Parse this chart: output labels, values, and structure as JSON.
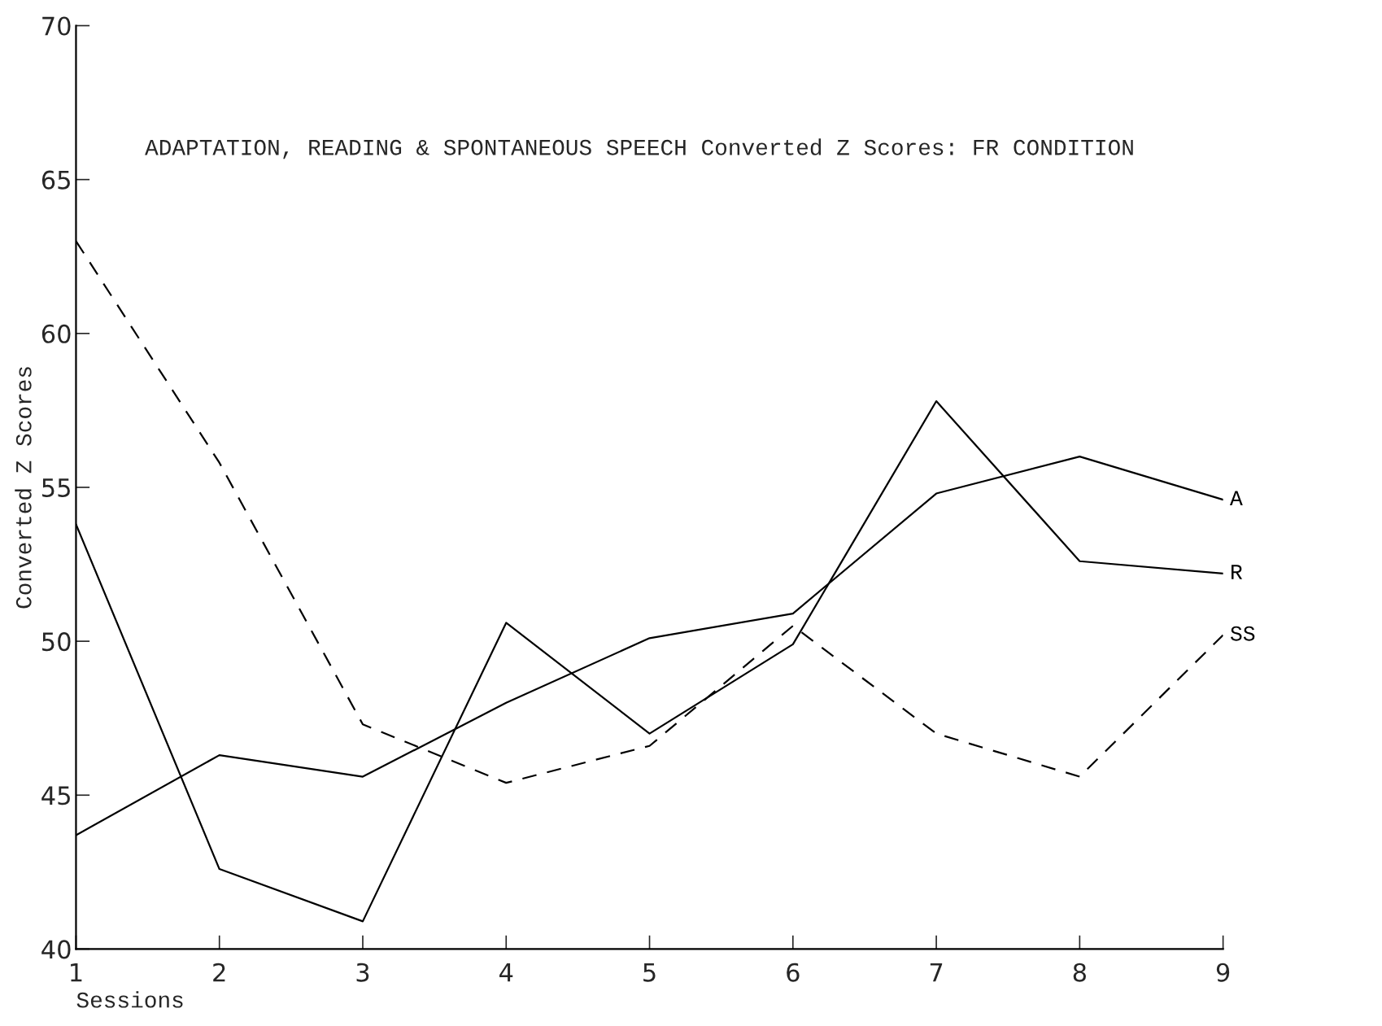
{
  "chart_data": {
    "type": "line",
    "title": "ADAPTATION, READING & SPONTANEOUS SPEECH Converted Z Scores: FR CONDITION",
    "xlabel": "Sessions",
    "ylabel": "Converted Z Scores",
    "x": [
      1,
      2,
      3,
      4,
      5,
      6,
      7,
      8,
      9
    ],
    "series": [
      {
        "name": "A",
        "color": "#000000",
        "line_style": "solid",
        "values": [
          43.7,
          46.3,
          45.6,
          48.0,
          50.1,
          50.9,
          54.8,
          56.0,
          54.6
        ]
      },
      {
        "name": "R",
        "color": "#000000",
        "line_style": "solid",
        "values": [
          53.8,
          42.6,
          40.9,
          50.6,
          47.0,
          49.9,
          57.8,
          52.6,
          52.2
        ]
      },
      {
        "name": "SS",
        "color": "#000000",
        "line_style": "dashed",
        "values": [
          63.0,
          55.8,
          47.3,
          45.4,
          46.6,
          50.5,
          47.0,
          45.6,
          50.2
        ]
      }
    ],
    "xlim": [
      1,
      9
    ],
    "xticks": [
      1,
      2,
      3,
      4,
      5,
      6,
      7,
      8,
      9
    ],
    "ylim": [
      40,
      70
    ],
    "yticks": [
      40,
      45,
      50,
      55,
      60,
      65,
      70
    ],
    "grid": false,
    "legend": false,
    "marker": "none"
  }
}
